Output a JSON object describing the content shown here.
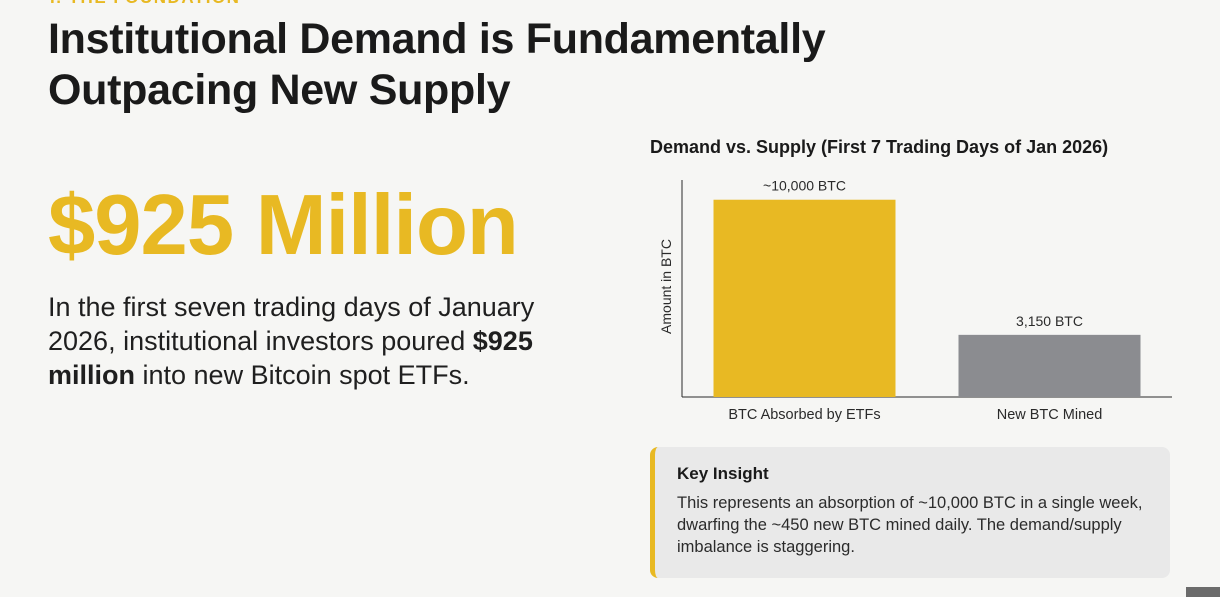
{
  "section": {
    "kicker": "I. THE FOUNDATION"
  },
  "headline": "Institutional Demand is Fundamentally Outpacing New Supply",
  "hero": {
    "big_number": "$925 Million",
    "description_part1": "In the first seven trading days of January 2026, institutional investors poured ",
    "description_bold": "$925 million",
    "description_part2": " into new Bitcoin spot ETFs."
  },
  "colors": {
    "accent": "#e8b923",
    "neutral_bar": "#8b8c90",
    "text": "#1a1a1a",
    "background": "#f6f6f4"
  },
  "chart_data": {
    "type": "bar",
    "title": "Demand vs. Supply (First 7 Trading Days of Jan 2026)",
    "xlabel": "",
    "ylabel": "Amount in BTC",
    "categories": [
      "BTC Absorbed by ETFs",
      "New BTC Mined"
    ],
    "values": [
      10000,
      3150
    ],
    "data_labels": [
      "~10,000 BTC",
      "3,150 BTC"
    ],
    "colors": [
      "#e8b923",
      "#8b8c90"
    ],
    "ylim": [
      0,
      11000
    ],
    "grid": false,
    "legend": "none"
  },
  "insight": {
    "title": "Key Insight",
    "body": "This represents an absorption of ~10,000 BTC in a single week, dwarfing the ~450 new BTC mined daily. The demand/supply imbalance is staggering."
  }
}
